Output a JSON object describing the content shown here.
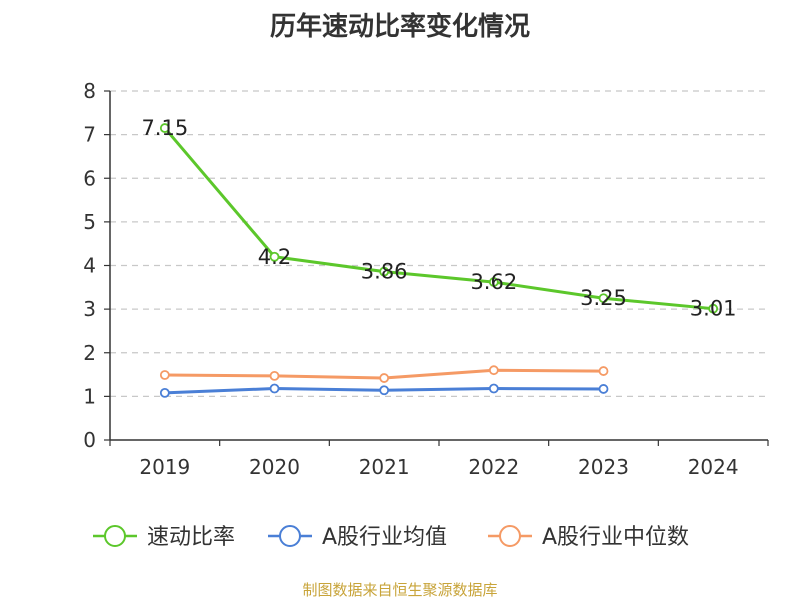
{
  "chart_data": {
    "type": "line",
    "title": "历年速动比率变化情况",
    "categories": [
      "2019",
      "2020",
      "2021",
      "2022",
      "2023",
      "2024"
    ],
    "ylim": [
      0,
      8
    ],
    "yticks": [
      "0",
      "1",
      "2",
      "3",
      "4",
      "5",
      "6",
      "7",
      "8"
    ],
    "grid": "horizontal dashed",
    "legend_position": "bottom",
    "series": [
      {
        "name": "速动比率",
        "color": "#5cc72b",
        "values": [
          7.15,
          4.2,
          3.86,
          3.62,
          3.25,
          3.01
        ],
        "labels": [
          "7.15",
          "4.2",
          "3.86",
          "3.62",
          "3.25",
          "3.01"
        ]
      },
      {
        "name": "A股行业均值",
        "color": "#4a7fd6",
        "values": [
          1.08,
          1.18,
          1.14,
          1.18,
          1.17,
          null
        ]
      },
      {
        "name": "A股行业中位数",
        "color": "#f59a65",
        "values": [
          1.49,
          1.47,
          1.42,
          1.6,
          1.58,
          null
        ]
      }
    ]
  },
  "source": "制图数据来自恒生聚源数据库"
}
